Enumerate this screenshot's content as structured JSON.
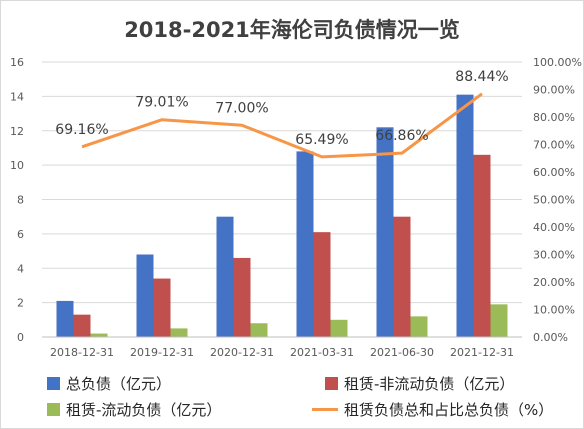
{
  "chart_data": {
    "type": "bar",
    "title": "2018-2021年海伦司负债情况一览",
    "categories": [
      "2018-12-31",
      "2019-12-31",
      "2020-12-31",
      "2021-03-31",
      "2021-06-30",
      "2021-12-31"
    ],
    "series": [
      {
        "name": "总负债（亿元）",
        "type": "bar",
        "axis": "left",
        "color": "#4472c4",
        "values": [
          2.1,
          4.8,
          7.0,
          10.8,
          12.2,
          14.1
        ]
      },
      {
        "name": "租赁-非流动负债（亿元）",
        "type": "bar",
        "axis": "left",
        "color": "#c0504d",
        "values": [
          1.3,
          3.4,
          4.6,
          6.1,
          7.0,
          10.6
        ]
      },
      {
        "name": "租赁-流动负债（亿元）",
        "type": "bar",
        "axis": "left",
        "color": "#9bbb59",
        "values": [
          0.2,
          0.5,
          0.8,
          1.0,
          1.2,
          1.9
        ]
      },
      {
        "name": "租赁负债总和占比总负债（%）",
        "type": "line",
        "axis": "right",
        "color": "#f79646",
        "values": [
          69.16,
          79.01,
          77.0,
          65.49,
          66.86,
          88.44
        ],
        "labels": [
          "69.16%",
          "79.01%",
          "77.00%",
          "65.49%",
          "66.86%",
          "88.44%"
        ]
      }
    ],
    "ylim_left": [
      0,
      16
    ],
    "yticks_left": [
      "0",
      "2",
      "4",
      "6",
      "8",
      "10",
      "12",
      "14",
      "16"
    ],
    "ylim_right": [
      0,
      100
    ],
    "yticks_right": [
      "0.00%",
      "10.00%",
      "20.00%",
      "30.00%",
      "40.00%",
      "50.00%",
      "60.00%",
      "70.00%",
      "80.00%",
      "90.00%",
      "100.00%"
    ],
    "grid": true,
    "legend_position": "bottom"
  }
}
